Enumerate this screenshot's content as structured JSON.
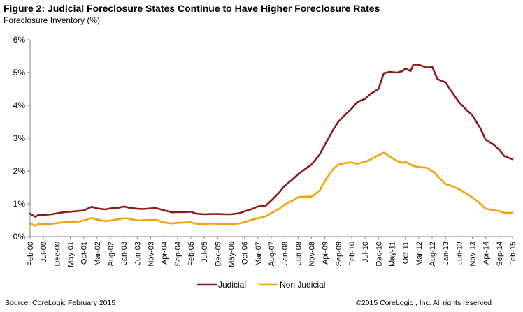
{
  "header": {
    "title": "Figure 2: Judicial Foreclosure States Continue to Have Higher Foreclosure Rates",
    "subtitle": "Foreclosure Inventory  (%)"
  },
  "footer": {
    "source": "Source: CoreLogic February 2015",
    "copyright": "©2015 CoreLogic ,  Inc.  All rights reserved"
  },
  "chart_data": {
    "type": "line",
    "title": "",
    "xlabel": "",
    "ylabel": "",
    "ylim": [
      0,
      6
    ],
    "yticks": [
      "0%",
      "1%",
      "2%",
      "3%",
      "4%",
      "5%",
      "6%"
    ],
    "xlim": [
      "Feb-00",
      "Feb-15"
    ],
    "x_tick_labels": [
      "Feb-00",
      "Jul-00",
      "Dec-00",
      "May-01",
      "Oct-01",
      "Mar-02",
      "Aug-02",
      "Jan-03",
      "Jun-03",
      "Nov-03",
      "Apr-04",
      "Sep-04",
      "Feb-05",
      "Jul-05",
      "Dec-05",
      "May-06",
      "Oct-06",
      "Mar-07",
      "Aug-07",
      "Jan-08",
      "Jun-08",
      "Nov-08",
      "Apr-09",
      "Sep-09",
      "Feb-10",
      "Jul-10",
      "Dec-10",
      "May-11",
      "Oct-11",
      "Mar-12",
      "Aug-12",
      "Jan-13",
      "Jun-13",
      "Nov-13",
      "Apr-14",
      "Sep-14",
      "Feb-15"
    ],
    "x_tick_rotation": "vertical",
    "grid": false,
    "legend": "bottom-center",
    "series": [
      {
        "name": "Judicial",
        "color": "#8b1a1a",
        "points": [
          [
            "Feb-00",
            0.7
          ],
          [
            "Apr-00",
            0.6
          ],
          [
            "May-00",
            0.66
          ],
          [
            "Jul-00",
            0.66
          ],
          [
            "Oct-00",
            0.68
          ],
          [
            "Dec-00",
            0.71
          ],
          [
            "Mar-01",
            0.75
          ],
          [
            "May-01",
            0.76
          ],
          [
            "Aug-01",
            0.78
          ],
          [
            "Oct-01",
            0.8
          ],
          [
            "Jan-02",
            0.91
          ],
          [
            "Mar-02",
            0.86
          ],
          [
            "Jun-02",
            0.83
          ],
          [
            "Aug-02",
            0.86
          ],
          [
            "Nov-02",
            0.88
          ],
          [
            "Jan-03",
            0.92
          ],
          [
            "Mar-03",
            0.88
          ],
          [
            "Jun-03",
            0.85
          ],
          [
            "Aug-03",
            0.84
          ],
          [
            "Nov-03",
            0.86
          ],
          [
            "Jan-04",
            0.87
          ],
          [
            "Apr-04",
            0.8
          ],
          [
            "Jul-04",
            0.74
          ],
          [
            "Sep-04",
            0.75
          ],
          [
            "Dec-04",
            0.75
          ],
          [
            "Feb-05",
            0.76
          ],
          [
            "Apr-05",
            0.7
          ],
          [
            "Jul-05",
            0.68
          ],
          [
            "Oct-05",
            0.69
          ],
          [
            "Dec-05",
            0.69
          ],
          [
            "Mar-06",
            0.68
          ],
          [
            "May-06",
            0.68
          ],
          [
            "Aug-06",
            0.71
          ],
          [
            "Oct-06",
            0.77
          ],
          [
            "Jan-07",
            0.85
          ],
          [
            "Mar-07",
            0.92
          ],
          [
            "Jun-07",
            0.95
          ],
          [
            "Aug-07",
            1.1
          ],
          [
            "Nov-07",
            1.35
          ],
          [
            "Jan-08",
            1.55
          ],
          [
            "Apr-08",
            1.75
          ],
          [
            "Jun-08",
            1.9
          ],
          [
            "Sep-08",
            2.08
          ],
          [
            "Nov-08",
            2.2
          ],
          [
            "Feb-09",
            2.5
          ],
          [
            "Apr-09",
            2.8
          ],
          [
            "Jul-09",
            3.25
          ],
          [
            "Sep-09",
            3.5
          ],
          [
            "Dec-09",
            3.75
          ],
          [
            "Feb-10",
            3.9
          ],
          [
            "Apr-10",
            4.1
          ],
          [
            "Jul-10",
            4.2
          ],
          [
            "Sep-10",
            4.35
          ],
          [
            "Dec-10",
            4.5
          ],
          [
            "Feb-11",
            4.98
          ],
          [
            "Apr-11",
            5.02
          ],
          [
            "Jul-11",
            5.0
          ],
          [
            "Sep-11",
            5.05
          ],
          [
            "Oct-11",
            5.12
          ],
          [
            "Dec-11",
            5.05
          ],
          [
            "Jan-12",
            5.25
          ],
          [
            "Mar-12",
            5.24
          ],
          [
            "Jun-12",
            5.15
          ],
          [
            "Aug-12",
            5.18
          ],
          [
            "Oct-12",
            4.8
          ],
          [
            "Jan-13",
            4.7
          ],
          [
            "Mar-13",
            4.45
          ],
          [
            "Jun-13",
            4.1
          ],
          [
            "Sep-13",
            3.85
          ],
          [
            "Nov-13",
            3.7
          ],
          [
            "Feb-14",
            3.3
          ],
          [
            "Apr-14",
            2.95
          ],
          [
            "Jul-14",
            2.8
          ],
          [
            "Sep-14",
            2.65
          ],
          [
            "Nov-14",
            2.45
          ],
          [
            "Feb-15",
            2.36
          ]
        ]
      },
      {
        "name": "Non Judicial",
        "color": "#f5a00a",
        "points": [
          [
            "Feb-00",
            0.4
          ],
          [
            "Apr-00",
            0.33
          ],
          [
            "May-00",
            0.38
          ],
          [
            "Jul-00",
            0.38
          ],
          [
            "Oct-00",
            0.39
          ],
          [
            "Dec-00",
            0.41
          ],
          [
            "Mar-01",
            0.44
          ],
          [
            "May-01",
            0.45
          ],
          [
            "Aug-01",
            0.46
          ],
          [
            "Oct-01",
            0.49
          ],
          [
            "Jan-02",
            0.57
          ],
          [
            "Mar-02",
            0.52
          ],
          [
            "Jun-02",
            0.47
          ],
          [
            "Aug-02",
            0.49
          ],
          [
            "Nov-02",
            0.53
          ],
          [
            "Jan-03",
            0.56
          ],
          [
            "Mar-03",
            0.55
          ],
          [
            "Jun-03",
            0.49
          ],
          [
            "Aug-03",
            0.5
          ],
          [
            "Nov-03",
            0.51
          ],
          [
            "Jan-04",
            0.51
          ],
          [
            "Apr-04",
            0.43
          ],
          [
            "Jul-04",
            0.4
          ],
          [
            "Sep-04",
            0.42
          ],
          [
            "Dec-04",
            0.43
          ],
          [
            "Feb-05",
            0.44
          ],
          [
            "Apr-05",
            0.39
          ],
          [
            "Jul-05",
            0.38
          ],
          [
            "Oct-05",
            0.4
          ],
          [
            "Dec-05",
            0.39
          ],
          [
            "Mar-06",
            0.39
          ],
          [
            "May-06",
            0.38
          ],
          [
            "Aug-06",
            0.4
          ],
          [
            "Oct-06",
            0.44
          ],
          [
            "Jan-07",
            0.52
          ],
          [
            "Mar-07",
            0.56
          ],
          [
            "Jun-07",
            0.62
          ],
          [
            "Aug-07",
            0.72
          ],
          [
            "Nov-07",
            0.85
          ],
          [
            "Jan-08",
            0.98
          ],
          [
            "Apr-08",
            1.1
          ],
          [
            "Jun-08",
            1.2
          ],
          [
            "Sep-08",
            1.22
          ],
          [
            "Nov-08",
            1.22
          ],
          [
            "Feb-09",
            1.4
          ],
          [
            "Apr-09",
            1.7
          ],
          [
            "Jul-09",
            2.05
          ],
          [
            "Sep-09",
            2.2
          ],
          [
            "Dec-09",
            2.25
          ],
          [
            "Feb-10",
            2.26
          ],
          [
            "Apr-10",
            2.22
          ],
          [
            "Jul-10",
            2.28
          ],
          [
            "Sep-10",
            2.35
          ],
          [
            "Dec-10",
            2.48
          ],
          [
            "Feb-11",
            2.56
          ],
          [
            "Apr-11",
            2.45
          ],
          [
            "Jul-11",
            2.3
          ],
          [
            "Sep-11",
            2.25
          ],
          [
            "Oct-11",
            2.28
          ],
          [
            "Dec-11",
            2.2
          ],
          [
            "Jan-12",
            2.15
          ],
          [
            "Mar-12",
            2.12
          ],
          [
            "Jun-12",
            2.1
          ],
          [
            "Aug-12",
            2.0
          ],
          [
            "Oct-12",
            1.85
          ],
          [
            "Jan-13",
            1.6
          ],
          [
            "Mar-13",
            1.55
          ],
          [
            "Jun-13",
            1.45
          ],
          [
            "Sep-13",
            1.3
          ],
          [
            "Nov-13",
            1.2
          ],
          [
            "Feb-14",
            1.0
          ],
          [
            "Apr-14",
            0.85
          ],
          [
            "Jul-14",
            0.8
          ],
          [
            "Sep-14",
            0.78
          ],
          [
            "Nov-14",
            0.72
          ],
          [
            "Feb-15",
            0.73
          ]
        ]
      }
    ]
  }
}
